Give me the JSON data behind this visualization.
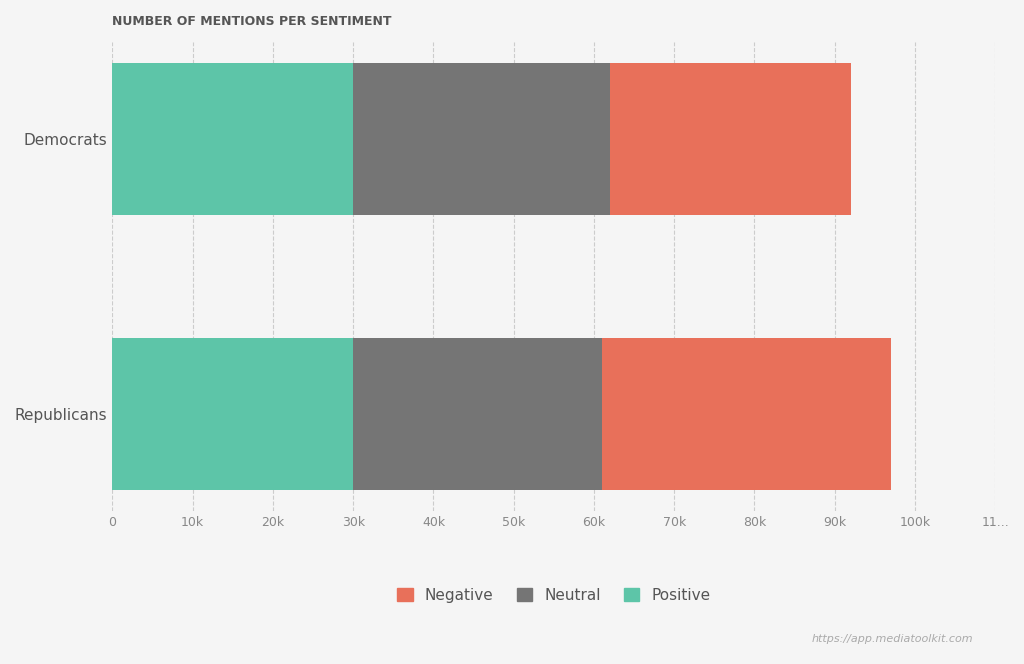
{
  "title": "NUMBER OF MENTIONS PER SENTIMENT",
  "categories": [
    "Republicans",
    "Democrats"
  ],
  "positive": [
    30000,
    30000
  ],
  "neutral": [
    31000,
    32000
  ],
  "negative": [
    36000,
    30000
  ],
  "colors": {
    "positive": "#5DC5A8",
    "neutral": "#757575",
    "negative": "#E8705A"
  },
  "xlim": [
    0,
    110000
  ],
  "xticks": [
    0,
    10000,
    20000,
    30000,
    40000,
    50000,
    60000,
    70000,
    80000,
    90000,
    100000,
    110000
  ],
  "xticklabels": [
    "0",
    "10k",
    "20k",
    "30k",
    "40k",
    "50k",
    "60k",
    "70k",
    "80k",
    "90k",
    "100k",
    "11..."
  ],
  "background_color": "#F5F5F5",
  "watermark": "https://app.mediatoolkit.com",
  "title_fontsize": 9,
  "label_fontsize": 10
}
